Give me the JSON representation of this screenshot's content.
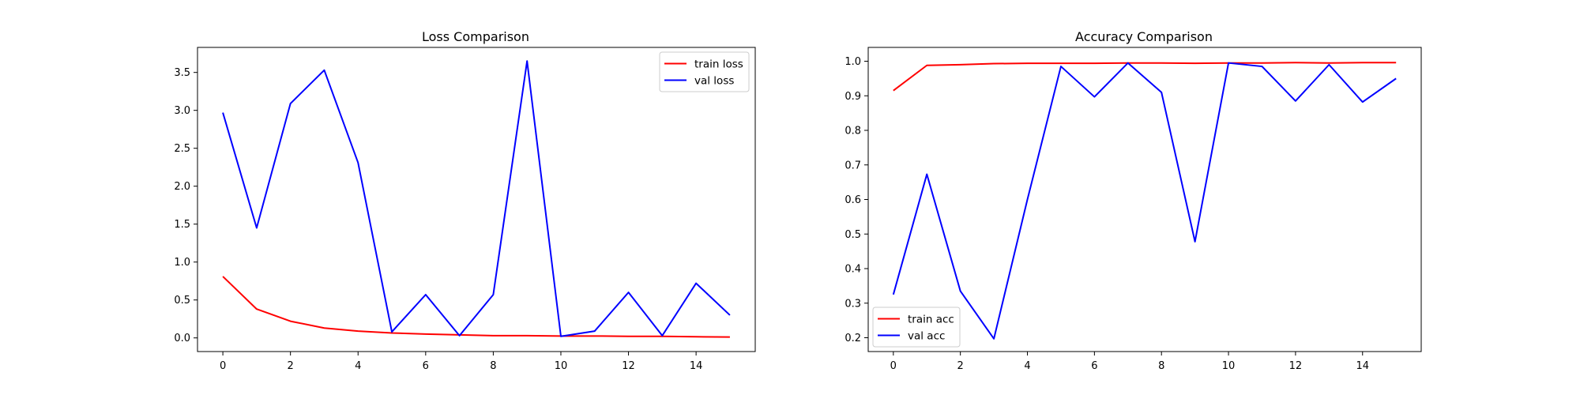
{
  "chart_data": [
    {
      "type": "line",
      "title": "Loss Comparison",
      "xlabel": "",
      "ylabel": "",
      "x": [
        0,
        1,
        2,
        3,
        4,
        5,
        6,
        7,
        8,
        9,
        10,
        11,
        12,
        13,
        14,
        15
      ],
      "xlim": [
        -0.75,
        15.75
      ],
      "ylim": [
        -0.18,
        3.83
      ],
      "xticks": [
        0,
        2,
        4,
        6,
        8,
        10,
        12,
        14
      ],
      "yticks": [
        0.0,
        0.5,
        1.0,
        1.5,
        2.0,
        2.5,
        3.0,
        3.5
      ],
      "ytick_labels": [
        "0.0",
        "0.5",
        "1.0",
        "1.5",
        "2.0",
        "2.5",
        "3.0",
        "3.5"
      ],
      "grid": false,
      "legend_position": "top-right",
      "series": [
        {
          "name": "train loss",
          "color": "#ff0000",
          "values": [
            0.81,
            0.38,
            0.22,
            0.13,
            0.09,
            0.065,
            0.05,
            0.04,
            0.03,
            0.03,
            0.025,
            0.025,
            0.02,
            0.02,
            0.015,
            0.012
          ]
        },
        {
          "name": "val loss",
          "color": "#0000ff",
          "values": [
            2.97,
            1.45,
            3.09,
            3.53,
            2.31,
            0.08,
            0.57,
            0.03,
            0.57,
            3.65,
            0.02,
            0.09,
            0.6,
            0.03,
            0.72,
            0.3
          ]
        }
      ]
    },
    {
      "type": "line",
      "title": "Accuracy Comparison",
      "xlabel": "",
      "ylabel": "",
      "x": [
        0,
        1,
        2,
        3,
        4,
        5,
        6,
        7,
        8,
        9,
        10,
        11,
        12,
        13,
        14,
        15
      ],
      "xlim": [
        -0.75,
        15.75
      ],
      "ylim": [
        0.16,
        1.04
      ],
      "xticks": [
        0,
        2,
        4,
        6,
        8,
        10,
        12,
        14
      ],
      "yticks": [
        0.2,
        0.3,
        0.4,
        0.5,
        0.6,
        0.7,
        0.8,
        0.9,
        1.0
      ],
      "ytick_labels": [
        "0.2",
        "0.3",
        "0.4",
        "0.5",
        "0.6",
        "0.7",
        "0.8",
        "0.9",
        "1.0"
      ],
      "grid": false,
      "legend_position": "bottom-left",
      "series": [
        {
          "name": "train acc",
          "color": "#ff0000",
          "values": [
            0.915,
            0.988,
            0.99,
            0.993,
            0.994,
            0.994,
            0.994,
            0.995,
            0.995,
            0.994,
            0.995,
            0.995,
            0.996,
            0.995,
            0.996,
            0.996
          ]
        },
        {
          "name": "val acc",
          "color": "#0000ff",
          "values": [
            0.325,
            0.673,
            0.335,
            0.197,
            0.6,
            0.985,
            0.897,
            0.995,
            0.91,
            0.478,
            0.995,
            0.985,
            0.885,
            0.99,
            0.882,
            0.95
          ]
        }
      ]
    }
  ]
}
